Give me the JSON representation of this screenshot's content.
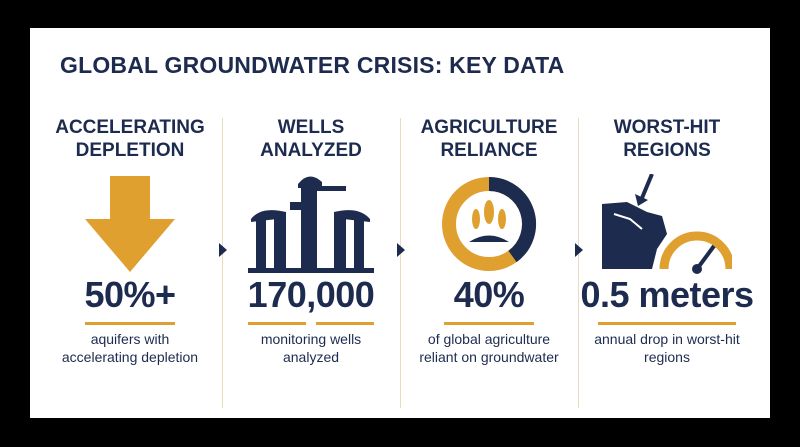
{
  "title": "GLOBAL GROUNDWATER CRISIS: KEY DATA",
  "panels": [
    {
      "heading": "ACCELERATING DEPLETION",
      "stat": "50%+",
      "description": "aquifers with accelerating depletion"
    },
    {
      "heading": "WELLS ANALYZED",
      "stat": "170,000",
      "description": "monitoring wells analyzed"
    },
    {
      "heading": "AGRICULTURE RELIANCE",
      "stat": "40%",
      "description": "of global agriculture reliant on groundwater"
    },
    {
      "heading": "WORST-HIT REGIONS",
      "stat": "0.5 meters",
      "description": "annual drop in worst-hit regions"
    }
  ]
}
